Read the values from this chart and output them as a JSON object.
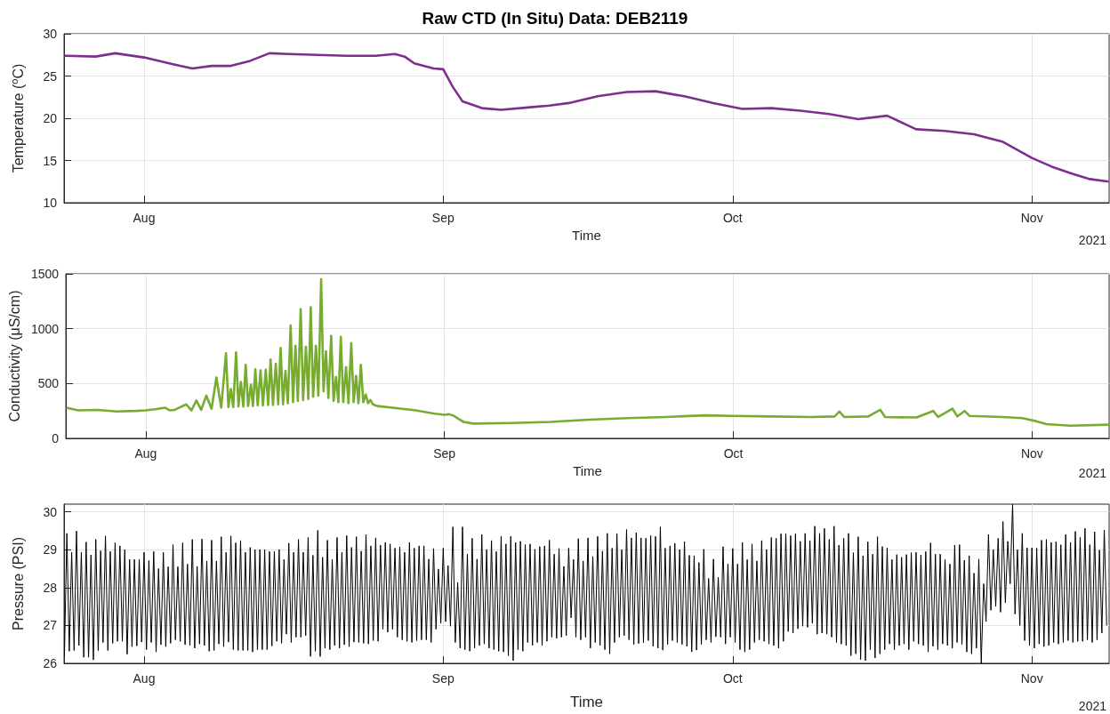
{
  "chart_data": [
    {
      "type": "line",
      "title": "Raw CTD (In Situ) Data: DEB2119",
      "xlabel": "Time",
      "ylabel": "Temperature ($^{o}$C)",
      "annotations": [
        "2021"
      ],
      "grid": true,
      "xlim": [
        "2021-07-23T17:00",
        "2021-11-09T00:00"
      ],
      "xticks": [
        {
          "value": "2021-08-01",
          "label": "Aug"
        },
        {
          "value": "2021-09-01",
          "label": "Sep"
        },
        {
          "value": "2021-10-01",
          "label": "Oct"
        },
        {
          "value": "2021-11-01",
          "label": "Nov"
        }
      ],
      "ylim": [
        10,
        30
      ],
      "yticks": [
        10,
        15,
        20,
        25,
        30
      ],
      "x": [
        "2021-07-23T18:00",
        "2021-07-24T00:00",
        "2021-07-27T00:00",
        "2021-07-29T00:00",
        "2021-08-01T00:00",
        "2021-08-04T00:00",
        "2021-08-06T00:00",
        "2021-08-08T00:00",
        "2021-08-10T00:00",
        "2021-08-12T00:00",
        "2021-08-14T00:00",
        "2021-08-16T00:00",
        "2021-08-19T00:00",
        "2021-08-22T00:00",
        "2021-08-25T00:00",
        "2021-08-27T00:00",
        "2021-08-28T00:00",
        "2021-08-29T00:00",
        "2021-08-31T00:00",
        "2021-09-01T00:00",
        "2021-09-02T00:00",
        "2021-09-03T00:00",
        "2021-09-05T00:00",
        "2021-09-07T00:00",
        "2021-09-10T00:00",
        "2021-09-12T00:00",
        "2021-09-14T00:00",
        "2021-09-17T00:00",
        "2021-09-20T00:00",
        "2021-09-23T00:00",
        "2021-09-26T00:00",
        "2021-09-29T00:00",
        "2021-10-02T00:00",
        "2021-10-05T00:00",
        "2021-10-08T00:00",
        "2021-10-11T00:00",
        "2021-10-14T00:00",
        "2021-10-17T00:00",
        "2021-10-20T00:00",
        "2021-10-23T00:00",
        "2021-10-26T00:00",
        "2021-10-29T00:00",
        "2021-11-01T00:00",
        "2021-11-03T00:00",
        "2021-11-05T00:00",
        "2021-11-07T00:00",
        "2021-11-08T23:00"
      ],
      "series": [
        {
          "color": "#7e2f8e",
          "values": [
            27.4,
            27.4,
            27.3,
            27.7,
            27.2,
            26.4,
            25.9,
            26.2,
            26.2,
            26.8,
            27.7,
            27.6,
            27.5,
            27.4,
            27.4,
            27.6,
            27.3,
            26.5,
            25.9,
            25.8,
            23.7,
            22.0,
            21.2,
            21.0,
            21.3,
            21.5,
            21.8,
            22.6,
            23.1,
            23.2,
            22.6,
            21.8,
            21.1,
            21.2,
            20.9,
            20.5,
            19.9,
            20.3,
            18.7,
            18.5,
            18.1,
            17.2,
            15.3,
            14.3,
            13.5,
            12.8,
            12.5
          ]
        }
      ]
    },
    {
      "type": "line",
      "xlabel": "Time",
      "ylabel": "Conductivity (μS/cm)",
      "annotations": [
        "2021"
      ],
      "grid": true,
      "xlim": [
        "2021-07-23T17:00",
        "2021-11-09T00:00"
      ],
      "xticks": [
        {
          "value": "2021-08-01",
          "label": "Aug"
        },
        {
          "value": "2021-09-01",
          "label": "Sep"
        },
        {
          "value": "2021-10-01",
          "label": "Oct"
        },
        {
          "value": "2021-11-01",
          "label": "Nov"
        }
      ],
      "ylim": [
        0,
        1500
      ],
      "yticks": [
        0,
        500,
        1000,
        1500
      ],
      "x": [
        "2021-07-23T18:00",
        "2021-07-25T00:00",
        "2021-07-27T00:00",
        "2021-07-29T00:00",
        "2021-07-31T00:00",
        "2021-08-01T00:00",
        "2021-08-02T00:00",
        "2021-08-03T00:00",
        "2021-08-03T12:00",
        "2021-08-04T00:00",
        "2021-08-05T05:00",
        "2021-08-05T18:00",
        "2021-08-06T06:00",
        "2021-08-06T18:00",
        "2021-08-07T07:00",
        "2021-08-07T20:00",
        "2021-08-08T08:00",
        "2021-08-08T20:00",
        "2021-08-09T08:00",
        "2021-08-09T14:00",
        "2021-08-09T20:00",
        "2021-08-10T02:00",
        "2021-08-10T09:00",
        "2021-08-10T15:00",
        "2021-08-10T21:00",
        "2021-08-11T03:00",
        "2021-08-11T09:00",
        "2021-08-11T15:00",
        "2021-08-11T22:00",
        "2021-08-12T03:00",
        "2021-08-12T09:00",
        "2021-08-12T15:00",
        "2021-08-12T22:00",
        "2021-08-13T04:00",
        "2021-08-13T11:00",
        "2021-08-13T17:00",
        "2021-08-13T23:00",
        "2021-08-14T05:00",
        "2021-08-14T12:00",
        "2021-08-14T18:00",
        "2021-08-15T00:00",
        "2021-08-15T06:00",
        "2021-08-15T12:00",
        "2021-08-15T18:00",
        "2021-08-16T01:00",
        "2021-08-16T07:00",
        "2021-08-16T13:00",
        "2021-08-16T19:00",
        "2021-08-17T02:00",
        "2021-08-17T08:00",
        "2021-08-17T15:00",
        "2021-08-17T21:00",
        "2021-08-18T03:00",
        "2021-08-18T09:00",
        "2021-08-18T16:00",
        "2021-08-18T22:00",
        "2021-08-19T05:00",
        "2021-08-19T11:00",
        "2021-08-19T17:00",
        "2021-08-19T23:00",
        "2021-08-20T06:00",
        "2021-08-20T12:00",
        "2021-08-20T18:00",
        "2021-08-21T00:00",
        "2021-08-21T06:00",
        "2021-08-21T12:00",
        "2021-08-21T19:00",
        "2021-08-22T01:00",
        "2021-08-22T08:00",
        "2021-08-22T14:00",
        "2021-08-22T20:00",
        "2021-08-23T02:00",
        "2021-08-23T08:00",
        "2021-08-23T14:00",
        "2021-08-23T20:00",
        "2021-08-24T02:00",
        "2021-08-24T08:00",
        "2021-08-24T14:00",
        "2021-08-25T00:00",
        "2021-08-27T00:00",
        "2021-08-29T00:00",
        "2021-08-31T00:00",
        "2021-09-01T00:00",
        "2021-09-01T12:00",
        "2021-09-02T00:00",
        "2021-09-02T12:00",
        "2021-09-03T00:00",
        "2021-09-04T00:00",
        "2021-09-08T00:00",
        "2021-09-12T00:00",
        "2021-09-16T00:00",
        "2021-09-20T00:00",
        "2021-09-24T00:00",
        "2021-09-28T00:00",
        "2021-10-01T00:00",
        "2021-10-05T00:00",
        "2021-10-09T00:00",
        "2021-10-11T12:00",
        "2021-10-12T00:00",
        "2021-10-12T12:00",
        "2021-10-15T00:00",
        "2021-10-16T06:00",
        "2021-10-16T18:00",
        "2021-10-20T00:00",
        "2021-10-21T18:00",
        "2021-10-22T06:00",
        "2021-10-23T18:00",
        "2021-10-24T06:00",
        "2021-10-25T00:00",
        "2021-10-25T12:00",
        "2021-10-29T00:00",
        "2021-10-31T00:00",
        "2021-11-01T12:00",
        "2021-11-02T12:00",
        "2021-11-05T00:00",
        "2021-11-08T23:00"
      ],
      "series": [
        {
          "color": "#77ac30",
          "values": [
            280,
            255,
            260,
            245,
            250,
            255,
            265,
            280,
            255,
            260,
            310,
            255,
            345,
            260,
            390,
            270,
            555,
            280,
            775,
            285,
            450,
            285,
            785,
            290,
            515,
            290,
            670,
            295,
            490,
            295,
            630,
            300,
            620,
            300,
            625,
            305,
            720,
            305,
            680,
            310,
            825,
            310,
            615,
            320,
            1030,
            330,
            845,
            340,
            1180,
            350,
            835,
            360,
            1195,
            380,
            845,
            390,
            1450,
            430,
            795,
            370,
            935,
            340,
            560,
            330,
            925,
            330,
            650,
            320,
            870,
            330,
            570,
            320,
            670,
            330,
            400,
            320,
            350,
            310,
            295,
            275,
            255,
            225,
            215,
            220,
            205,
            175,
            150,
            135,
            140,
            150,
            170,
            185,
            195,
            210,
            205,
            200,
            195,
            200,
            245,
            195,
            200,
            260,
            195,
            190,
            250,
            195,
            270,
            200,
            250,
            205,
            195,
            185,
            155,
            130,
            115,
            125
          ]
        }
      ]
    },
    {
      "type": "line",
      "xlabel": "Time",
      "ylabel": "Pressure (PSI)",
      "annotations": [
        "2021"
      ],
      "grid": true,
      "xlim": [
        "2021-07-23T17:00",
        "2021-11-09T00:00"
      ],
      "xticks": [
        {
          "value": "2021-08-01",
          "label": "Aug"
        },
        {
          "value": "2021-09-01",
          "label": "Sep"
        },
        {
          "value": "2021-10-01",
          "label": "Oct"
        },
        {
          "value": "2021-11-01",
          "label": "Nov"
        }
      ],
      "ylim": [
        26,
        30.2
      ],
      "yticks": [
        26,
        27,
        28,
        29,
        30
      ],
      "x": [
        "2021-07-23T18:00",
        "2021-07-24T00:00",
        "2021-07-24T06:00",
        "2021-07-24T12:00",
        "2021-07-24T18:00",
        "2021-07-25T00:00",
        "2021-07-25T06:00",
        "2021-07-25T12:00",
        "2021-07-25T18:00",
        "2021-07-26T00:00",
        "2021-07-26T06:00",
        "2021-07-26T12:00",
        "2021-07-26T18:00",
        "2021-07-27T00:00",
        "2021-07-27T06:00",
        "2021-07-27T12:00",
        "2021-07-27T18:00",
        "2021-07-28T00:00",
        "2021-07-28T06:00",
        "2021-07-28T12:00",
        "2021-07-28T18:00",
        "2021-07-29T00:00",
        "2021-07-29T06:00",
        "2021-07-29T12:00",
        "2021-07-29T18:00",
        "2021-07-30T00:00",
        "2021-07-30T06:00",
        "2021-07-30T12:00",
        "2021-07-30T18:00",
        "2021-07-31T00:00",
        "2021-07-31T06:00",
        "2021-07-31T12:00",
        "2021-07-31T18:00",
        "2021-08-01T00:00",
        "2021-08-01T06:00",
        "2021-08-01T12:00",
        "2021-08-01T18:00",
        "2021-08-02T00:00",
        "2021-08-02T06:00",
        "2021-08-02T12:00",
        "2021-08-02T18:00",
        "2021-08-03T00:00",
        "2021-08-03T06:00",
        "2021-08-03T12:00",
        "2021-08-03T18:00",
        "2021-08-04T00:00",
        "2021-08-04T06:00",
        "2021-08-04T12:00",
        "2021-08-04T18:00",
        "2021-08-05T00:00",
        "2021-08-05T06:00",
        "2021-08-05T12:00",
        "2021-08-05T18:00",
        "2021-08-06T00:00",
        "2021-08-06T06:00",
        "2021-08-06T12:00",
        "2021-08-06T18:00",
        "2021-08-07T00:00",
        "2021-08-07T06:00",
        "2021-08-07T12:00",
        "2021-08-07T18:00",
        "2021-08-08T00:00",
        "2021-08-08T06:00",
        "2021-08-08T12:00",
        "2021-08-08T18:00",
        "2021-08-09T00:00",
        "2021-08-09T06:00",
        "2021-08-09T12:00",
        "2021-08-09T18:00",
        "2021-08-10T00:00",
        "2021-08-10T06:00",
        "2021-08-10T12:00",
        "2021-08-10T18:00",
        "2021-08-11T00:00",
        "2021-08-11T06:00",
        "2021-08-11T12:00",
        "2021-08-11T18:00",
        "2021-08-12T00:00",
        "2021-08-12T06:00",
        "2021-08-12T12:00",
        "2021-08-12T18:00",
        "2021-08-13T00:00",
        "2021-08-13T06:00",
        "2021-08-13T12:00",
        "2021-08-13T18:00",
        "2021-08-14T00:00",
        "2021-08-14T06:00",
        "2021-08-14T12:00",
        "2021-08-14T18:00",
        "2021-08-15T00:00",
        "2021-08-15T06:00",
        "2021-08-15T12:00",
        "2021-08-15T18:00",
        "2021-08-16T00:00",
        "2021-08-16T06:00",
        "2021-08-16T12:00",
        "2021-08-16T18:00",
        "2021-08-17T00:00",
        "2021-08-17T06:00",
        "2021-08-17T12:00",
        "2021-08-17T18:00",
        "2021-08-18T00:00",
        "2021-08-18T06:00",
        "2021-08-18T12:00",
        "2021-08-18T18:00",
        "2021-08-19T00:00",
        "2021-08-19T06:00",
        "2021-08-19T12:00",
        "2021-08-19T18:00",
        "2021-08-20T00:00",
        "2021-08-20T06:00",
        "2021-08-20T12:00",
        "2021-08-20T18:00",
        "2021-08-21T00:00",
        "2021-08-21T06:00",
        "2021-08-21T12:00",
        "2021-08-21T18:00",
        "2021-08-22T00:00",
        "2021-08-22T06:00",
        "2021-08-22T12:00",
        "2021-08-22T18:00",
        "2021-08-23T00:00",
        "2021-08-23T06:00",
        "2021-08-23T12:00",
        "2021-08-23T18:00",
        "2021-08-24T00:00",
        "2021-08-24T06:00",
        "2021-08-24T12:00",
        "2021-08-24T18:00",
        "2021-08-25T00:00",
        "2021-08-25T06:00",
        "2021-08-25T12:00",
        "2021-08-25T18:00",
        "2021-08-26T00:00",
        "2021-08-26T06:00",
        "2021-08-26T12:00",
        "2021-08-26T18:00",
        "2021-08-27T00:00",
        "2021-08-27T06:00",
        "2021-08-27T12:00",
        "2021-08-27T18:00",
        "2021-08-28T00:00",
        "2021-08-28T06:00",
        "2021-08-28T12:00",
        "2021-08-28T18:00",
        "2021-08-29T00:00",
        "2021-08-29T06:00",
        "2021-08-29T12:00",
        "2021-08-29T18:00",
        "2021-08-30T00:00",
        "2021-08-30T06:00",
        "2021-08-30T12:00",
        "2021-08-30T18:00",
        "2021-08-31T00:00",
        "2021-08-31T06:00",
        "2021-08-31T12:00",
        "2021-08-31T18:00",
        "2021-09-01T00:00",
        "2021-09-01T06:00",
        "2021-09-01T12:00",
        "2021-09-01T18:00",
        "2021-09-02T00:00",
        "2021-09-02T06:00",
        "2021-09-02T12:00",
        "2021-09-02T18:00",
        "2021-09-03T00:00",
        "2021-09-03T06:00",
        "2021-09-03T12:00",
        "2021-09-03T18:00",
        "2021-09-04T00:00",
        "2021-09-04T06:00",
        "2021-09-04T12:00",
        "2021-09-04T18:00",
        "2021-09-05T00:00",
        "2021-09-05T06:00",
        "2021-09-05T12:00",
        "2021-09-05T18:00",
        "2021-09-06T00:00",
        "2021-09-06T06:00",
        "2021-09-06T12:00",
        "2021-09-06T18:00",
        "2021-09-07T00:00",
        "2021-09-07T06:00",
        "2021-09-07T12:00",
        "2021-09-07T18:00",
        "2021-09-08T00:00",
        "2021-09-08T06:00",
        "2021-09-08T12:00",
        "2021-09-08T18:00",
        "2021-09-09T00:00",
        "2021-09-09T06:00",
        "2021-09-09T12:00",
        "2021-09-09T18:00",
        "2021-09-10T00:00",
        "2021-09-10T06:00",
        "2021-09-10T12:00",
        "2021-09-10T18:00",
        "2021-09-11T00:00",
        "2021-09-11T06:00",
        "2021-09-11T12:00",
        "2021-09-11T18:00",
        "2021-09-12T00:00",
        "2021-09-12T06:00",
        "2021-09-12T12:00",
        "2021-09-12T18:00",
        "2021-09-13T00:00",
        "2021-09-13T06:00",
        "2021-09-13T12:00",
        "2021-09-13T18:00",
        "2021-09-14T00:00",
        "2021-09-14T06:00",
        "2021-09-14T12:00",
        "2021-09-14T18:00",
        "2021-09-15T00:00",
        "2021-09-15T06:00",
        "2021-09-15T12:00",
        "2021-09-15T18:00",
        "2021-09-16T00:00",
        "2021-09-16T06:00",
        "2021-09-16T12:00",
        "2021-09-16T18:00",
        "2021-09-17T00:00",
        "2021-09-17T06:00",
        "2021-09-17T12:00",
        "2021-09-17T18:00",
        "2021-09-18T00:00",
        "2021-09-18T06:00",
        "2021-09-18T12:00",
        "2021-09-18T18:00",
        "2021-09-19T00:00",
        "2021-09-19T06:00",
        "2021-09-19T12:00",
        "2021-09-19T18:00",
        "2021-09-20T00:00",
        "2021-09-20T06:00",
        "2021-09-20T12:00",
        "2021-09-20T18:00",
        "2021-09-21T00:00",
        "2021-09-21T06:00",
        "2021-09-21T12:00",
        "2021-09-21T18:00",
        "2021-09-22T00:00",
        "2021-09-22T06:00",
        "2021-09-22T12:00",
        "2021-09-22T18:00",
        "2021-09-23T00:00",
        "2021-09-23T06:00",
        "2021-09-23T12:00",
        "2021-09-23T18:00",
        "2021-09-24T00:00",
        "2021-09-24T06:00",
        "2021-09-24T12:00",
        "2021-09-24T18:00",
        "2021-09-25T00:00",
        "2021-09-25T06:00",
        "2021-09-25T12:00",
        "2021-09-25T18:00",
        "2021-09-26T00:00",
        "2021-09-26T06:00",
        "2021-09-26T12:00",
        "2021-09-26T18:00",
        "2021-09-27T00:00",
        "2021-09-27T06:00",
        "2021-09-27T12:00",
        "2021-09-27T18:00",
        "2021-09-28T00:00",
        "2021-09-28T06:00",
        "2021-09-28T12:00",
        "2021-09-28T18:00",
        "2021-09-29T00:00",
        "2021-09-29T06:00",
        "2021-09-29T12:00",
        "2021-09-29T18:00",
        "2021-09-30T00:00",
        "2021-09-30T06:00",
        "2021-09-30T12:00",
        "2021-09-30T18:00",
        "2021-10-01T00:00",
        "2021-10-01T06:00",
        "2021-10-01T12:00",
        "2021-10-01T18:00",
        "2021-10-02T00:00",
        "2021-10-02T06:00",
        "2021-10-02T12:00",
        "2021-10-02T18:00",
        "2021-10-03T00:00",
        "2021-10-03T06:00",
        "2021-10-03T12:00",
        "2021-10-03T18:00",
        "2021-10-04T00:00",
        "2021-10-04T06:00",
        "2021-10-04T12:00",
        "2021-10-04T18:00",
        "2021-10-05T00:00",
        "2021-10-05T06:00",
        "2021-10-05T12:00",
        "2021-10-05T18:00",
        "2021-10-06T00:00",
        "2021-10-06T06:00",
        "2021-10-06T12:00",
        "2021-10-06T18:00",
        "2021-10-07T00:00",
        "2021-10-07T06:00",
        "2021-10-07T12:00",
        "2021-10-07T18:00",
        "2021-10-08T00:00",
        "2021-10-08T06:00",
        "2021-10-08T12:00",
        "2021-10-08T18:00",
        "2021-10-09T00:00",
        "2021-10-09T06:00",
        "2021-10-09T12:00",
        "2021-10-09T18:00",
        "2021-10-10T00:00",
        "2021-10-10T06:00",
        "2021-10-10T12:00",
        "2021-10-10T18:00",
        "2021-10-11T00:00",
        "2021-10-11T06:00",
        "2021-10-11T12:00",
        "2021-10-11T18:00",
        "2021-10-12T00:00",
        "2021-10-12T06:00",
        "2021-10-12T12:00",
        "2021-10-12T18:00",
        "2021-10-13T00:00",
        "2021-10-13T06:00",
        "2021-10-13T12:00",
        "2021-10-13T18:00",
        "2021-10-14T00:00",
        "2021-10-14T06:00",
        "2021-10-14T12:00",
        "2021-10-14T18:00",
        "2021-10-15T00:00",
        "2021-10-15T06:00",
        "2021-10-15T12:00",
        "2021-10-15T18:00",
        "2021-10-16T00:00",
        "2021-10-16T06:00",
        "2021-10-16T12:00",
        "2021-10-16T18:00",
        "2021-10-17T00:00",
        "2021-10-17T06:00",
        "2021-10-17T12:00",
        "2021-10-17T18:00",
        "2021-10-18T00:00",
        "2021-10-18T06:00",
        "2021-10-18T12:00",
        "2021-10-18T18:00",
        "2021-10-19T00:00",
        "2021-10-19T06:00",
        "2021-10-19T12:00",
        "2021-10-19T18:00",
        "2021-10-20T00:00",
        "2021-10-20T06:00",
        "2021-10-20T12:00",
        "2021-10-20T18:00",
        "2021-10-21T00:00",
        "2021-10-21T06:00",
        "2021-10-21T12:00",
        "2021-10-21T18:00",
        "2021-10-22T00:00",
        "2021-10-22T06:00",
        "2021-10-22T12:00",
        "2021-10-22T18:00",
        "2021-10-23T00:00",
        "2021-10-23T06:00",
        "2021-10-23T12:00",
        "2021-10-23T18:00",
        "2021-10-24T00:00",
        "2021-10-24T06:00",
        "2021-10-24T12:00",
        "2021-10-24T18:00",
        "2021-10-25T00:00",
        "2021-10-25T06:00",
        "2021-10-25T12:00",
        "2021-10-25T18:00",
        "2021-10-26T00:00",
        "2021-10-26T06:00",
        "2021-10-26T12:00",
        "2021-10-26T18:00",
        "2021-10-27T00:00",
        "2021-10-27T06:00",
        "2021-10-27T12:00",
        "2021-10-27T18:00",
        "2021-10-28T00:00",
        "2021-10-28T06:00",
        "2021-10-28T12:00",
        "2021-10-28T18:00",
        "2021-10-29T00:00",
        "2021-10-29T06:00",
        "2021-10-29T12:00",
        "2021-10-29T18:00",
        "2021-10-30T00:00",
        "2021-10-30T06:00",
        "2021-10-30T12:00",
        "2021-10-30T18:00",
        "2021-10-31T00:00",
        "2021-10-31T06:00",
        "2021-10-31T12:00",
        "2021-10-31T18:00",
        "2021-11-01T00:00",
        "2021-11-01T06:00",
        "2021-11-01T12:00",
        "2021-11-01T18:00",
        "2021-11-02T00:00",
        "2021-11-02T06:00",
        "2021-11-02T12:00",
        "2021-11-02T18:00",
        "2021-11-03T00:00",
        "2021-11-03T06:00",
        "2021-11-03T12:00",
        "2021-11-03T18:00",
        "2021-11-04T00:00",
        "2021-11-04T06:00",
        "2021-11-04T12:00",
        "2021-11-04T18:00",
        "2021-11-05T00:00",
        "2021-11-05T06:00",
        "2021-11-05T12:00",
        "2021-11-05T18:00",
        "2021-11-06T00:00",
        "2021-11-06T06:00",
        "2021-11-06T12:00",
        "2021-11-06T18:00",
        "2021-11-07T00:00",
        "2021-11-07T06:00",
        "2021-11-07T12:00",
        "2021-11-07T18:00",
        "2021-11-08T00:00",
        "2021-11-08T06:00",
        "2021-11-08T12:00",
        "2021-11-08T18:00"
      ],
      "series": [
        {
          "color": "#000000",
          "values": [
            26.18,
            29.43,
            26.32,
            28.93,
            26.34,
            29.49,
            26.47,
            28.93,
            26.16,
            29.2,
            26.16,
            28.86,
            26.09,
            29.27,
            26.34,
            28.97,
            26.55,
            29.36,
            26.34,
            28.95,
            26.53,
            29.18,
            26.58,
            29.1,
            26.58,
            29.0,
            26.24,
            28.74,
            26.44,
            28.74,
            26.46,
            28.74,
            26.56,
            28.93,
            26.36,
            28.71,
            26.55,
            28.95,
            26.3,
            28.5,
            26.49,
            28.93,
            26.44,
            28.55,
            26.53,
            29.13,
            26.62,
            28.55,
            26.58,
            29.18,
            26.49,
            28.62,
            26.47,
            29.27,
            26.4,
            28.56,
            26.51,
            29.28,
            26.47,
            28.7,
            26.32,
            29.25,
            26.34,
            28.7,
            26.51,
            29.34,
            26.44,
            28.93,
            26.56,
            29.36,
            26.36,
            29.18,
            26.34,
            29.24,
            26.34,
            28.93,
            26.34,
            29.06,
            26.3,
            29.0,
            26.36,
            29.0,
            26.36,
            29.0,
            26.36,
            28.95,
            26.46,
            28.95,
            26.58,
            29.0,
            26.53,
            28.74,
            26.77,
            29.17,
            26.55,
            28.93,
            26.69,
            29.27,
            26.69,
            28.93,
            26.73,
            29.32,
            26.18,
            28.85,
            26.32,
            29.51,
            26.18,
            28.8,
            26.4,
            29.25,
            26.36,
            28.74,
            26.47,
            29.32,
            26.4,
            28.93,
            26.49,
            29.37,
            26.44,
            29.06,
            26.56,
            29.34,
            26.55,
            28.96,
            26.53,
            29.4,
            26.51,
            29.1,
            26.6,
            29.31,
            26.58,
            29.12,
            26.9,
            29.19,
            26.82,
            29.15,
            26.9,
            29.04,
            26.69,
            29.07,
            26.62,
            28.93,
            26.58,
            29.19,
            26.55,
            29.04,
            26.6,
            29.1,
            26.62,
            29.1,
            26.62,
            28.75,
            26.55,
            29.03,
            26.9,
            28.49,
            27.06,
            29.04,
            27.1,
            28.58,
            26.98,
            29.6,
            26.55,
            28.13,
            26.4,
            29.6,
            26.36,
            28.88,
            26.32,
            29.3,
            26.4,
            28.75,
            26.47,
            29.4,
            26.51,
            29.0,
            26.4,
            29.24,
            26.36,
            28.95,
            26.32,
            29.35,
            26.3,
            29.15,
            26.2,
            29.35,
            26.07,
            29.19,
            26.36,
            29.22,
            26.32,
            29.13,
            26.55,
            29.15,
            26.47,
            29.01,
            26.55,
            29.08,
            26.47,
            29.1,
            26.58,
            29.25,
            26.69,
            28.88,
            26.66,
            29.03,
            26.69,
            28.56,
            26.73,
            29.04,
            27.2,
            28.74,
            26.69,
            29.29,
            26.62,
            28.7,
            26.69,
            29.31,
            26.4,
            28.82,
            26.55,
            29.35,
            26.47,
            28.96,
            26.36,
            29.43,
            26.25,
            29.04,
            26.55,
            29.42,
            26.69,
            29.0,
            26.73,
            29.53,
            26.62,
            29.31,
            26.5,
            29.45,
            26.52,
            29.31,
            26.54,
            29.3,
            26.6,
            29.37,
            26.45,
            29.35,
            26.4,
            29.6,
            26.35,
            29.04,
            26.5,
            29.1,
            26.6,
            29.17,
            26.55,
            29.0,
            26.5,
            29.21,
            26.45,
            28.85,
            26.3,
            28.84,
            26.35,
            28.66,
            26.5,
            29.01,
            26.62,
            28.24,
            26.55,
            28.75,
            26.7,
            28.27,
            26.69,
            29.08,
            26.51,
            28.62,
            26.69,
            29.03,
            26.55,
            28.62,
            26.36,
            29.19,
            26.3,
            28.74,
            26.36,
            29.15,
            26.55,
            28.7,
            26.62,
            29.24,
            26.58,
            29.0,
            26.51,
            29.32,
            26.47,
            29.3,
            26.4,
            29.42,
            26.58,
            29.42,
            26.84,
            29.37,
            26.8,
            29.42,
            26.91,
            29.22,
            26.98,
            29.43,
            26.95,
            29.24,
            27.06,
            29.62,
            26.77,
            29.43,
            26.8,
            29.56,
            26.77,
            29.27,
            26.69,
            29.62,
            26.55,
            29.12,
            26.51,
            29.3,
            26.47,
            29.43,
            26.2,
            28.92,
            26.25,
            29.34,
            26.1,
            28.84,
            26.07,
            29.21,
            26.36,
            28.88,
            26.14,
            29.34,
            26.25,
            29.08,
            26.36,
            29.05,
            26.51,
            28.74,
            26.36,
            28.87,
            26.47,
            28.8,
            26.51,
            28.87,
            26.36,
            28.92,
            26.58,
            28.93,
            26.51,
            28.86,
            26.47,
            28.95,
            26.3,
            29.18,
            26.45,
            28.88,
            26.36,
            28.88,
            26.51,
            28.74,
            26.47,
            28.62,
            26.4,
            29.12,
            26.55,
            29.13,
            26.5,
            28.72,
            26.3,
            28.84,
            26.25,
            28.38,
            26.4,
            28.75,
            26.0,
            28.1,
            27.1,
            29.4,
            27.4,
            29.0,
            27.5,
            29.3,
            27.35,
            29.74,
            27.6,
            29.22,
            28.1,
            30.2,
            27.3,
            29.0,
            27.0,
            29.43,
            26.6,
            29.05,
            26.47,
            29.05,
            26.4,
            29.04,
            26.51,
            29.25,
            26.44,
            29.27,
            26.47,
            29.19,
            26.55,
            29.21,
            26.51,
            29.13,
            26.55,
            29.4,
            26.6,
            29.19,
            26.55,
            29.48,
            26.58,
            29.32,
            26.58,
            29.56,
            26.62,
            29.13,
            26.55,
            29.47,
            26.62,
            28.99,
            26.8,
            29.52,
            27.0
          ]
        }
      ]
    }
  ]
}
